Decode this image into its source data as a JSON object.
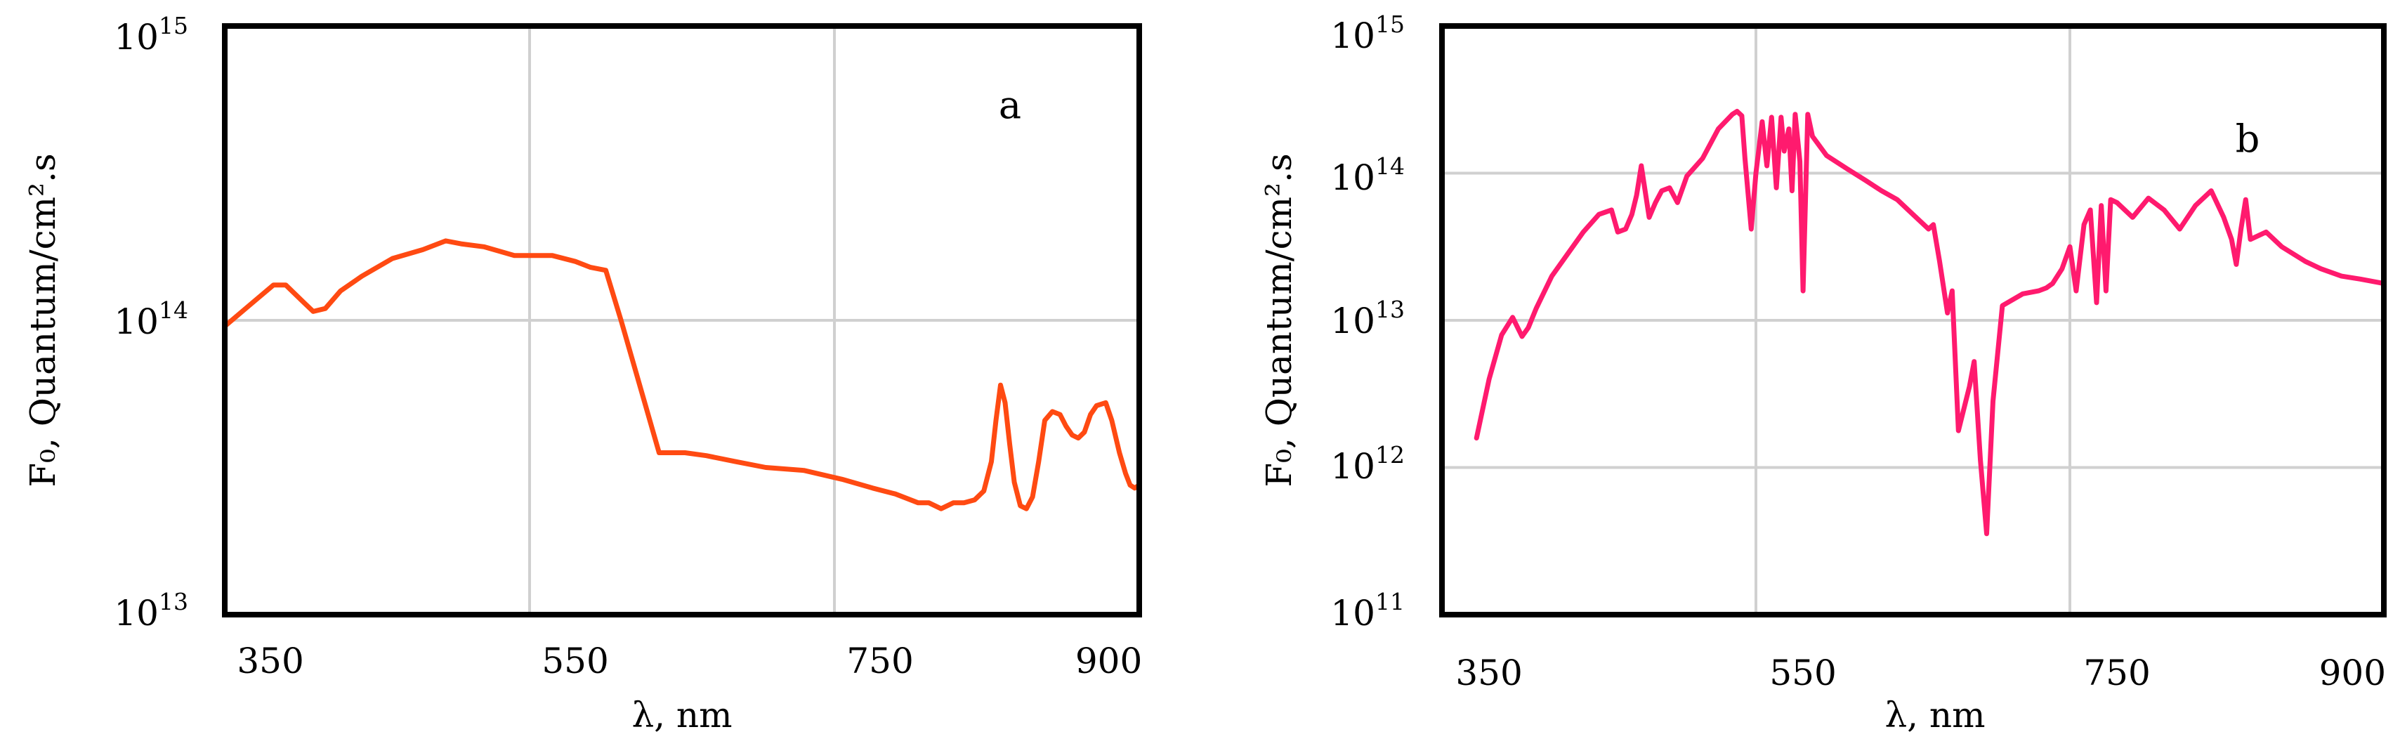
{
  "chart_data": [
    {
      "type": "line",
      "panel_label": "a",
      "xlabel": "λ, nm",
      "ylabel": "F₀, Quantum/cm².s",
      "y_scale": "log",
      "xlim": [
        320,
        920
      ],
      "ylim_exponent": [
        13,
        15
      ],
      "x_ticks": [
        {
          "value": 350,
          "label": "350"
        },
        {
          "value": 550,
          "label": "550"
        },
        {
          "value": 750,
          "label": "750"
        },
        {
          "value": 900,
          "label": "900"
        }
      ],
      "x_gridlines": [
        520,
        720
      ],
      "y_ticks": [
        {
          "exp": 13,
          "base": "10",
          "power": "13"
        },
        {
          "exp": 14,
          "base": "10",
          "power": "14"
        },
        {
          "exp": 15,
          "base": "10",
          "power": "15"
        }
      ],
      "color": "#ff4a12",
      "series": [
        {
          "name": "F0 (a)",
          "x": [
            320,
            336,
            352,
            360,
            372,
            378,
            386,
            396,
            410,
            430,
            450,
            465,
            475,
            490,
            510,
            535,
            550,
            560,
            570,
            580,
            590,
            605,
            622,
            636,
            655,
            675,
            700,
            725,
            745,
            760,
            775,
            782,
            790,
            798,
            805,
            812,
            818,
            823,
            826,
            829,
            832,
            835,
            838,
            842,
            846,
            850,
            854,
            858,
            863,
            868,
            872,
            876,
            880,
            884,
            888,
            892,
            898,
            902,
            907,
            911,
            914,
            917,
            920
          ],
          "y_log10": [
            13.98,
            14.05,
            14.12,
            14.12,
            14.06,
            14.03,
            14.04,
            14.1,
            14.15,
            14.21,
            14.24,
            14.27,
            14.26,
            14.25,
            14.22,
            14.22,
            14.2,
            14.18,
            14.17,
            14.0,
            13.82,
            13.55,
            13.55,
            13.54,
            13.52,
            13.5,
            13.49,
            13.46,
            13.43,
            13.41,
            13.38,
            13.38,
            13.36,
            13.38,
            13.38,
            13.39,
            13.42,
            13.52,
            13.66,
            13.78,
            13.72,
            13.58,
            13.45,
            13.37,
            13.36,
            13.4,
            13.52,
            13.66,
            13.69,
            13.68,
            13.64,
            13.61,
            13.6,
            13.62,
            13.68,
            13.71,
            13.72,
            13.66,
            13.55,
            13.48,
            13.44,
            13.43,
            13.44
          ]
        }
      ]
    },
    {
      "type": "line",
      "panel_label": "b",
      "xlabel": "λ, nm",
      "ylabel": "F₀, Quantum/cm².s",
      "y_scale": "log",
      "xlim": [
        320,
        920
      ],
      "ylim_exponent": [
        11,
        15
      ],
      "x_ticks": [
        {
          "value": 350,
          "label": "350"
        },
        {
          "value": 550,
          "label": "550"
        },
        {
          "value": 750,
          "label": "750"
        },
        {
          "value": 900,
          "label": "900"
        }
      ],
      "x_gridlines": [
        520,
        720
      ],
      "y_ticks": [
        {
          "exp": 11,
          "base": "10",
          "power": "11"
        },
        {
          "exp": 12,
          "base": "10",
          "power": "12"
        },
        {
          "exp": 13,
          "base": "10",
          "power": "13"
        },
        {
          "exp": 14,
          "base": "10",
          "power": "14"
        },
        {
          "exp": 15,
          "base": "10",
          "power": "15"
        }
      ],
      "color": "#ff1a6e",
      "series": [
        {
          "name": "F0 (b)",
          "x": [
            342,
            350,
            358,
            365,
            371,
            375,
            380,
            390,
            400,
            410,
            420,
            428,
            432,
            437,
            441,
            444,
            447,
            452,
            456,
            460,
            465,
            470,
            476,
            486,
            496,
            505,
            508,
            511,
            513,
            517,
            520,
            524,
            527,
            530,
            533,
            536,
            538,
            541,
            543,
            545,
            548,
            550,
            553,
            556,
            565,
            578,
            590,
            600,
            610,
            620,
            630,
            633,
            637,
            642,
            645,
            649,
            656,
            659,
            663,
            667,
            671,
            677,
            690,
            700,
            705,
            709,
            715,
            720,
            724,
            729,
            733,
            737,
            740,
            743,
            746,
            750,
            760,
            770,
            780,
            790,
            800,
            810,
            818,
            823,
            826,
            829,
            832,
            835,
            845,
            855,
            870,
            880,
            893,
            905,
            920
          ],
          "y_log10": [
            12.2,
            12.6,
            12.9,
            13.02,
            12.89,
            12.95,
            13.08,
            13.3,
            13.45,
            13.6,
            13.72,
            13.75,
            13.6,
            13.62,
            13.72,
            13.85,
            14.05,
            13.7,
            13.8,
            13.88,
            13.9,
            13.8,
            13.98,
            14.1,
            14.3,
            14.4,
            14.42,
            14.39,
            14.1,
            13.62,
            14.0,
            14.35,
            14.05,
            14.38,
            13.9,
            14.38,
            14.15,
            14.3,
            13.88,
            14.4,
            14.08,
            13.2,
            14.4,
            14.25,
            14.12,
            14.03,
            13.95,
            13.88,
            13.82,
            13.72,
            13.62,
            13.65,
            13.4,
            13.05,
            13.2,
            12.25,
            12.55,
            12.72,
            12.05,
            11.55,
            12.45,
            13.1,
            13.18,
            13.2,
            13.22,
            13.25,
            13.35,
            13.5,
            13.2,
            13.65,
            13.75,
            13.12,
            13.78,
            13.2,
            13.82,
            13.8,
            13.7,
            13.83,
            13.75,
            13.62,
            13.78,
            13.88,
            13.7,
            13.55,
            13.38,
            13.62,
            13.82,
            13.55,
            13.6,
            13.5,
            13.4,
            13.35,
            13.3,
            13.28,
            13.25
          ]
        }
      ]
    }
  ]
}
